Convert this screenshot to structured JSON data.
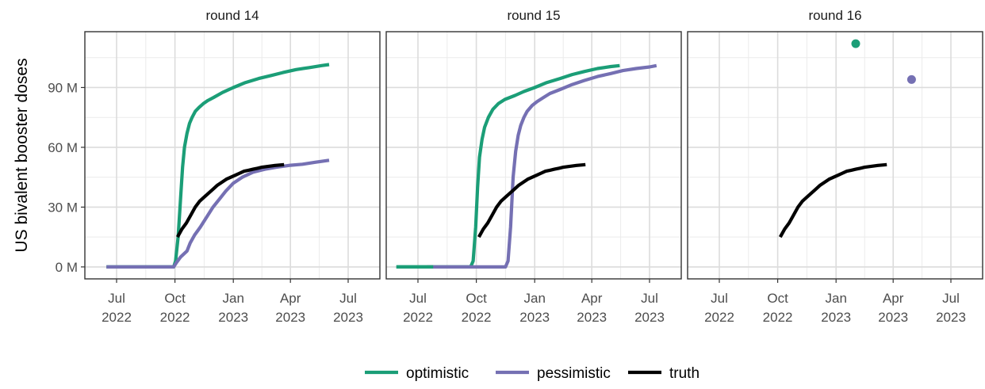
{
  "chart_data": {
    "type": "line",
    "ylabel": "US bivalent booster doses",
    "ylim": [
      -6,
      118
    ],
    "yticks": [
      {
        "value": 0,
        "label": "0 M"
      },
      {
        "value": 30,
        "label": "30 M"
      },
      {
        "value": 60,
        "label": "60 M"
      },
      {
        "value": 90,
        "label": "90 M"
      }
    ],
    "xlim": [
      "2022-05-12",
      "2023-08-20"
    ],
    "xticks": [
      {
        "date": "2022-07-01",
        "line1": "Jul",
        "line2": "2022"
      },
      {
        "date": "2022-10-01",
        "line1": "Oct",
        "line2": "2022"
      },
      {
        "date": "2023-01-01",
        "line1": "Jan",
        "line2": "2023"
      },
      {
        "date": "2023-04-01",
        "line1": "Apr",
        "line2": "2023"
      },
      {
        "date": "2023-07-01",
        "line1": "Jul",
        "line2": "2023"
      }
    ],
    "grid": true,
    "legend": {
      "position": "bottom",
      "items": [
        {
          "label": "optimistic",
          "color": "#1b9e77"
        },
        {
          "label": "pessimistic",
          "color": "#7570b3"
        },
        {
          "label": "truth",
          "color": "#000000"
        }
      ]
    },
    "panels": [
      {
        "title": "round 14",
        "series": [
          {
            "name": "optimistic",
            "color": "#1b9e77",
            "type": "line",
            "x": [
              "2022-06-15",
              "2022-09-29",
              "2022-10-02",
              "2022-10-06",
              "2022-10-10",
              "2022-10-13",
              "2022-10-16",
              "2022-10-20",
              "2022-10-24",
              "2022-10-28",
              "2022-11-02",
              "2022-11-08",
              "2022-11-15",
              "2022-11-22",
              "2022-12-01",
              "2022-12-15",
              "2023-01-01",
              "2023-01-20",
              "2023-02-10",
              "2023-03-01",
              "2023-03-20",
              "2023-04-10",
              "2023-05-01",
              "2023-05-20",
              "2023-06-01"
            ],
            "y": [
              0,
              0,
              3,
              15,
              35,
              50,
              60,
              67,
              72,
              75,
              78,
              80,
              82,
              83.5,
              85,
              87.5,
              90,
              92.5,
              94.5,
              96,
              97.5,
              99,
              100,
              101,
              101.5
            ]
          },
          {
            "name": "pessimistic",
            "color": "#7570b3",
            "type": "line",
            "x": [
              "2022-06-15",
              "2022-09-29",
              "2022-10-03",
              "2022-10-10",
              "2022-10-20",
              "2022-10-25",
              "2022-11-01",
              "2022-11-10",
              "2022-11-20",
              "2022-11-30",
              "2022-12-10",
              "2022-12-20",
              "2023-01-01",
              "2023-01-15",
              "2023-02-01",
              "2023-02-20",
              "2023-03-10",
              "2023-04-01",
              "2023-04-20",
              "2023-05-10",
              "2023-06-01"
            ],
            "y": [
              0,
              0,
              2,
              5,
              8,
              12,
              16,
              20,
              25,
              30,
              34,
              38,
              42,
              45,
              47.5,
              49,
              50,
              51,
              51.5,
              52.5,
              53.5
            ]
          },
          {
            "name": "truth",
            "color": "#000000",
            "type": "line",
            "x": [
              "2022-10-05",
              "2022-10-12",
              "2022-10-19",
              "2022-10-26",
              "2022-11-02",
              "2022-11-09",
              "2022-11-16",
              "2022-11-23",
              "2022-11-30",
              "2022-12-07",
              "2022-12-14",
              "2022-12-21",
              "2022-12-28",
              "2023-01-04",
              "2023-01-11",
              "2023-01-18",
              "2023-01-25",
              "2023-02-01",
              "2023-02-08",
              "2023-02-15",
              "2023-02-22",
              "2023-03-01",
              "2023-03-08",
              "2023-03-15",
              "2023-03-22"
            ],
            "y": [
              15,
              19,
              22,
              26,
              30,
              33,
              35,
              37,
              39,
              41,
              42.5,
              44,
              45,
              46,
              47,
              48,
              48.5,
              49,
              49.5,
              50,
              50.3,
              50.6,
              50.9,
              51.1,
              51.3
            ]
          }
        ]
      },
      {
        "title": "round 15",
        "series": [
          {
            "name": "optimistic",
            "color": "#1b9e77",
            "type": "line",
            "x": [
              "2022-05-28",
              "2022-09-22",
              "2022-09-26",
              "2022-09-30",
              "2022-10-03",
              "2022-10-06",
              "2022-10-10",
              "2022-10-14",
              "2022-10-20",
              "2022-10-27",
              "2022-11-05",
              "2022-11-15",
              "2022-12-01",
              "2022-12-15",
              "2023-01-01",
              "2023-01-20",
              "2023-02-10",
              "2023-03-01",
              "2023-03-20",
              "2023-04-10",
              "2023-05-01",
              "2023-05-15"
            ],
            "y": [
              0,
              0,
              3,
              20,
              40,
              55,
              64,
              70,
              75,
              79,
              82,
              84,
              86,
              88,
              90,
              92.5,
              94.5,
              96.5,
              98,
              99.5,
              100.5,
              101
            ]
          },
          {
            "name": "pessimistic",
            "color": "#7570b3",
            "type": "line",
            "x": [
              "2022-07-15",
              "2022-11-16",
              "2022-11-20",
              "2022-11-24",
              "2022-11-28",
              "2022-12-02",
              "2022-12-06",
              "2022-12-10",
              "2022-12-15",
              "2022-12-20",
              "2022-12-28",
              "2023-01-05",
              "2023-01-15",
              "2023-01-25",
              "2023-02-10",
              "2023-03-01",
              "2023-03-20",
              "2023-04-10",
              "2023-05-01",
              "2023-05-20",
              "2023-06-10",
              "2023-07-01",
              "2023-07-12"
            ],
            "y": [
              0,
              0,
              3,
              20,
              45,
              58,
              66,
              71,
              75,
              78,
              81,
              83,
              85,
              87,
              89,
              91.5,
              93.5,
              95.5,
              97,
              98.5,
              99.5,
              100.3,
              101
            ]
          },
          {
            "name": "truth",
            "color": "#000000",
            "type": "line",
            "x": [
              "2022-10-05",
              "2022-10-12",
              "2022-10-19",
              "2022-10-26",
              "2022-11-02",
              "2022-11-09",
              "2022-11-16",
              "2022-11-23",
              "2022-11-30",
              "2022-12-07",
              "2022-12-14",
              "2022-12-21",
              "2022-12-28",
              "2023-01-04",
              "2023-01-11",
              "2023-01-18",
              "2023-01-25",
              "2023-02-01",
              "2023-02-08",
              "2023-02-15",
              "2023-02-22",
              "2023-03-01",
              "2023-03-08",
              "2023-03-15",
              "2023-03-22"
            ],
            "y": [
              15,
              19,
              22,
              26,
              30,
              33,
              35,
              37,
              39,
              41,
              42.5,
              44,
              45,
              46,
              47,
              48,
              48.5,
              49,
              49.5,
              50,
              50.3,
              50.6,
              50.9,
              51.1,
              51.3
            ]
          },
          {
            "name": "optimistic",
            "color": "#1b9e77",
            "type": "line",
            "x": [
              "2022-05-28",
              "2022-07-25"
            ],
            "y": [
              0,
              0
            ]
          }
        ]
      },
      {
        "title": "round 16",
        "series": [
          {
            "name": "truth",
            "color": "#000000",
            "type": "line",
            "x": [
              "2022-10-05",
              "2022-10-12",
              "2022-10-19",
              "2022-10-26",
              "2022-11-02",
              "2022-11-09",
              "2022-11-16",
              "2022-11-23",
              "2022-11-30",
              "2022-12-07",
              "2022-12-14",
              "2022-12-21",
              "2022-12-28",
              "2023-01-04",
              "2023-01-11",
              "2023-01-18",
              "2023-01-25",
              "2023-02-01",
              "2023-02-08",
              "2023-02-15",
              "2023-02-22",
              "2023-03-01",
              "2023-03-08",
              "2023-03-15",
              "2023-03-22"
            ],
            "y": [
              15,
              19,
              22,
              26,
              30,
              33,
              35,
              37,
              39,
              41,
              42.5,
              44,
              45,
              46,
              47,
              48,
              48.5,
              49,
              49.5,
              50,
              50.3,
              50.6,
              50.9,
              51.1,
              51.3
            ]
          },
          {
            "name": "optimistic",
            "color": "#1b9e77",
            "type": "point",
            "x": [
              "2023-02-01"
            ],
            "y": [
              112
            ]
          },
          {
            "name": "pessimistic",
            "color": "#7570b3",
            "type": "point",
            "x": [
              "2023-04-30"
            ],
            "y": [
              94
            ]
          }
        ]
      }
    ]
  }
}
